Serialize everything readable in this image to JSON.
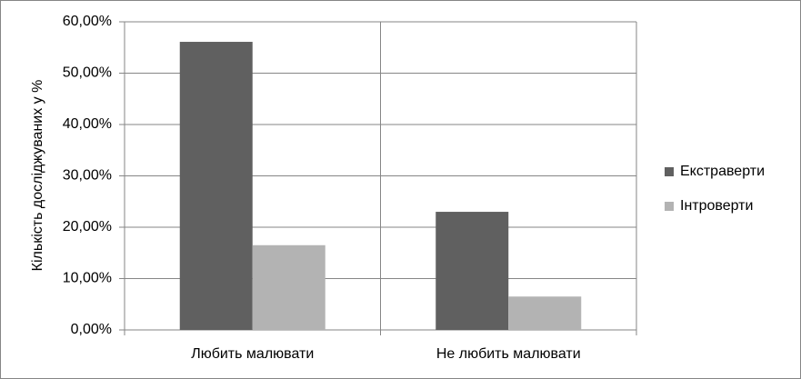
{
  "chart_data": {
    "type": "bar",
    "y_label": "Кількість досліджуваних у %",
    "categories": [
      "Любить малювати",
      "Не любить малювати"
    ],
    "series": [
      {
        "name": "Екстраверти",
        "color": "#606060",
        "values": [
          56.1,
          23.0
        ]
      },
      {
        "name": "Інтроверти",
        "color": "#b3b3b3",
        "values": [
          16.5,
          6.5
        ]
      }
    ],
    "ylim": [
      0,
      60
    ],
    "yticks": [
      {
        "value": 0,
        "label": "0,00%"
      },
      {
        "value": 10,
        "label": "10,00%"
      },
      {
        "value": 20,
        "label": "20,00%"
      },
      {
        "value": 30,
        "label": "30,00%"
      },
      {
        "value": 40,
        "label": "40,00%"
      },
      {
        "value": 50,
        "label": "50,00%"
      },
      {
        "value": 60,
        "label": "60,00%"
      }
    ],
    "grid": true,
    "legend": "right"
  }
}
